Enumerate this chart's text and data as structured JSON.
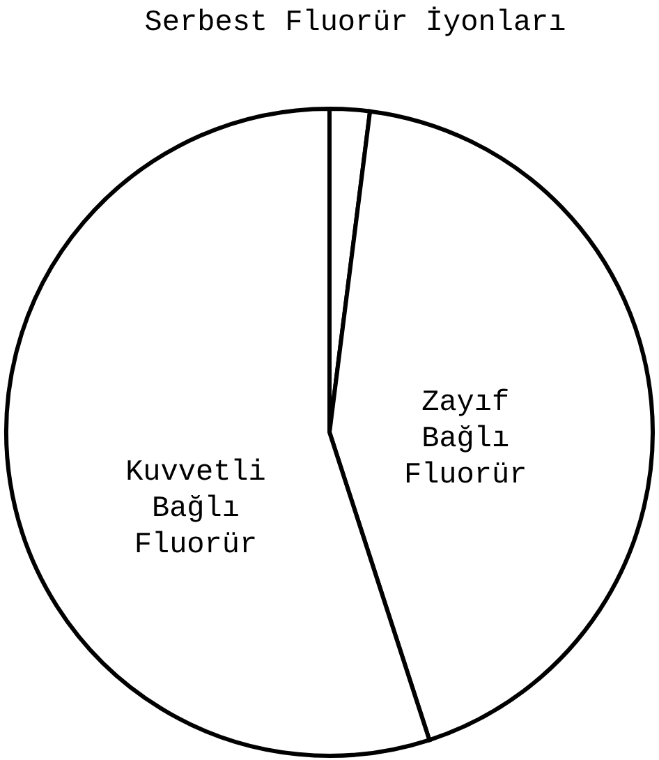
{
  "chart_data": {
    "type": "pie",
    "categories": [
      "Serbest Fluorür İyonları",
      "Zayıf Bağlı Fluorür",
      "Kuvvetli Bağlı Fluorür"
    ],
    "values": [
      2,
      43,
      55
    ],
    "colors": [
      "#ffffff",
      "#ffffff",
      "#ffffff"
    ]
  }
}
